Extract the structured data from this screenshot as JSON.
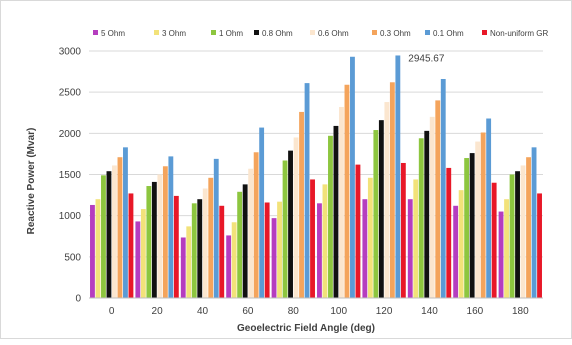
{
  "chart_data": {
    "type": "bar",
    "title": "",
    "xlabel": "Geoelectric Field Angle (deg)",
    "ylabel": "Reactive Power (Mvar)",
    "categories": [
      "0",
      "20",
      "40",
      "60",
      "80",
      "100",
      "120",
      "140",
      "160",
      "180"
    ],
    "ylim": [
      0,
      3000
    ],
    "yticks": [
      "0",
      "500",
      "1000",
      "1500",
      "2000",
      "2500",
      "3000"
    ],
    "grid": "horizontal",
    "legend": "top",
    "series": [
      {
        "name": "5 Ohm",
        "color": "#b53dbf",
        "values": [
          1130,
          930,
          735,
          760,
          970,
          1150,
          1200,
          1200,
          1120,
          1050
        ]
      },
      {
        "name": "3 Ohm",
        "color": "#f2e27a",
        "values": [
          1200,
          1080,
          870,
          920,
          1170,
          1380,
          1460,
          1440,
          1310,
          1200
        ]
      },
      {
        "name": "1 Ohm",
        "color": "#8dc63f",
        "values": [
          1490,
          1360,
          1150,
          1290,
          1670,
          1970,
          2040,
          1940,
          1700,
          1500
        ]
      },
      {
        "name": "0.8 Ohm",
        "color": "#111111",
        "values": [
          1540,
          1410,
          1200,
          1380,
          1790,
          2090,
          2160,
          2030,
          1760,
          1540
        ]
      },
      {
        "name": "0.6 Ohm",
        "color": "#fbe6cf",
        "values": [
          1610,
          1500,
          1330,
          1570,
          1950,
          2320,
          2380,
          2200,
          1900,
          1610
        ]
      },
      {
        "name": "0.3 Ohm",
        "color": "#f4a45c",
        "values": [
          1710,
          1600,
          1460,
          1770,
          2260,
          2590,
          2620,
          2400,
          2010,
          1710
        ]
      },
      {
        "name": "0.1 Ohm",
        "color": "#5b9bd5",
        "values": [
          1830,
          1720,
          1690,
          2070,
          2610,
          2930,
          2945.67,
          2660,
          2180,
          1830
        ]
      },
      {
        "name": "Non-uniform GR",
        "color": "#e81828",
        "values": [
          1270,
          1240,
          1120,
          1160,
          1440,
          1620,
          1640,
          1580,
          1400,
          1270
        ]
      }
    ],
    "annotations": [
      {
        "text": "2945.67",
        "series": "0.1 Ohm",
        "category": "120"
      }
    ]
  }
}
